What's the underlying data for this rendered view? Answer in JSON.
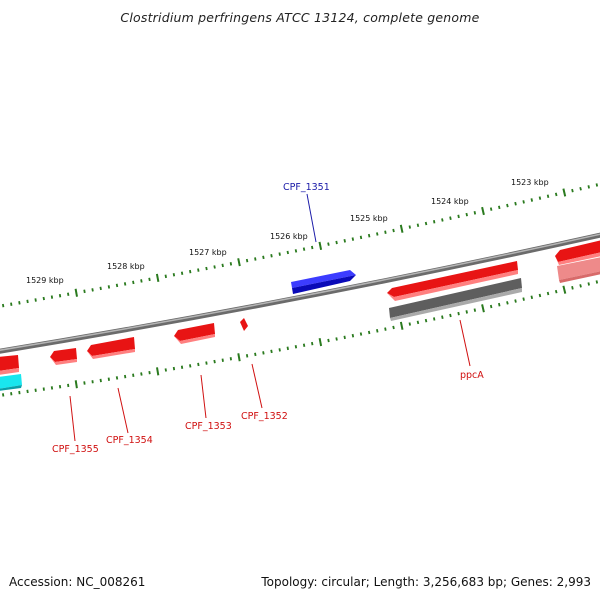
{
  "title": "Clostridium perfringens ATCC 13124, complete genome",
  "footer": {
    "accession": "Accession: NC_008261",
    "summary": "Topology: circular; Length: 3,256,683 bp; Genes: 2,993"
  },
  "colors": {
    "backbone": "#8a8a8a",
    "tick": "#2a7a1e",
    "gene_forward": "#1a1aee",
    "gene_reverse": "#e81414",
    "gene_reverse_light": "#ee8a8a",
    "gene_cyan": "#19e6ee",
    "gene_gray": "#5e5e5e",
    "label_forward": "#1a1aa8",
    "label_reverse": "#d01010"
  },
  "scale_labels": [
    {
      "text": "1523 kbp"
    },
    {
      "text": "1524 kbp"
    },
    {
      "text": "1525 kbp"
    },
    {
      "text": "1526 kbp"
    },
    {
      "text": "1527 kbp"
    },
    {
      "text": "1528 kbp"
    },
    {
      "text": "1529 kbp"
    }
  ],
  "gene_labels": [
    {
      "text": "CPF_1351",
      "strand": "forward"
    },
    {
      "text": "ppcA",
      "strand": "reverse"
    },
    {
      "text": "CPF_1352",
      "strand": "reverse"
    },
    {
      "text": "CPF_1353",
      "strand": "reverse"
    },
    {
      "text": "CPF_1354",
      "strand": "reverse"
    },
    {
      "text": "CPF_1355",
      "strand": "reverse"
    }
  ]
}
